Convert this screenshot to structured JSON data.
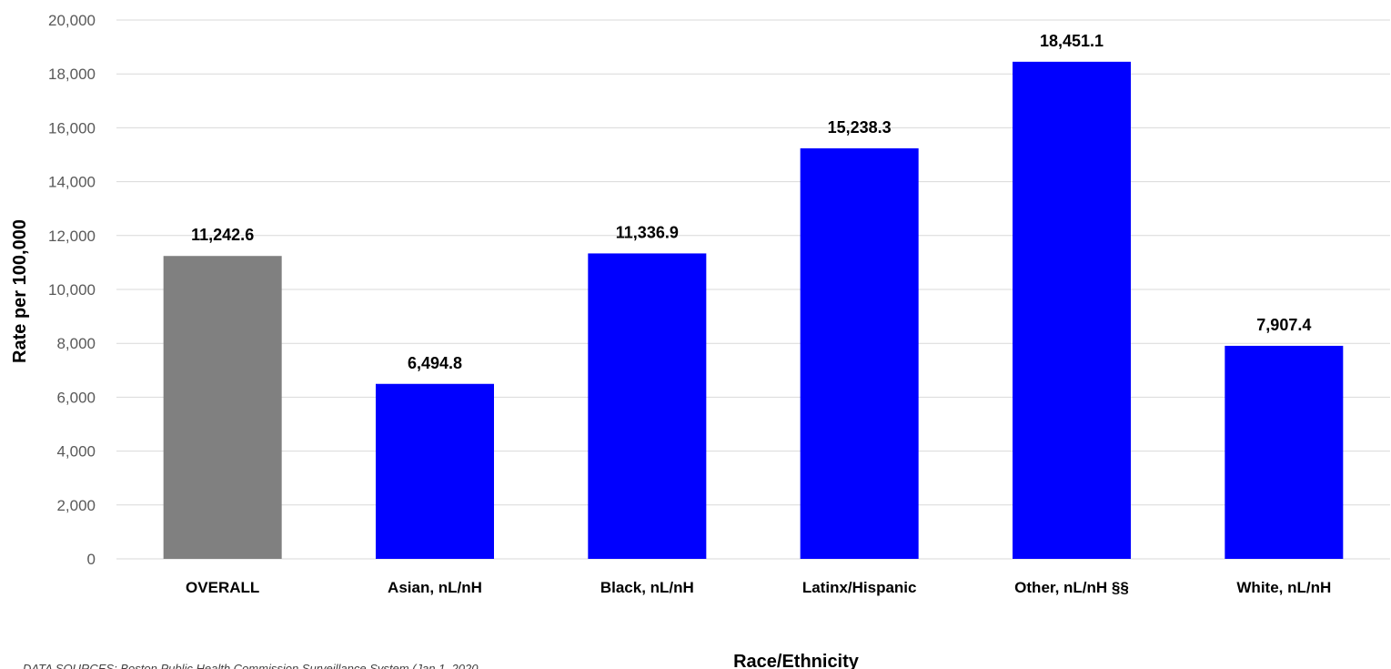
{
  "chart_data": {
    "type": "bar",
    "categories": [
      "OVERALL",
      "Asian, nL/nH",
      "Black, nL/nH",
      "Latinx/Hispanic",
      "Other, nL/nH §§",
      "White, nL/nH"
    ],
    "values": [
      11242.6,
      6494.8,
      11336.9,
      15238.3,
      18451.1,
      7907.4
    ],
    "value_labels": [
      "11,242.6",
      "6,494.8",
      "11,336.9",
      "15,238.3",
      "18,451.1",
      "7,907.4"
    ],
    "bar_colors": [
      "#808080",
      "#0000ff",
      "#0000ff",
      "#0000ff",
      "#0000ff",
      "#0000ff"
    ],
    "title": "",
    "xlabel": "Race/Ethnicity",
    "ylabel": "Rate per 100,000",
    "ylim": [
      0,
      20000
    ],
    "yticks": [
      0,
      2000,
      4000,
      6000,
      8000,
      10000,
      12000,
      14000,
      16000,
      18000,
      20000
    ],
    "ytick_labels": [
      "0",
      "2,000",
      "4,000",
      "6,000",
      "8,000",
      "10,000",
      "12,000",
      "14,000",
      "16,000",
      "18,000",
      "20,000"
    ],
    "grid": true,
    "gridline_color": "#d9d9d9",
    "source_note": "DATA SOURCES: Boston Public Health Commission Surveillance System (Jan 1, 2020"
  }
}
